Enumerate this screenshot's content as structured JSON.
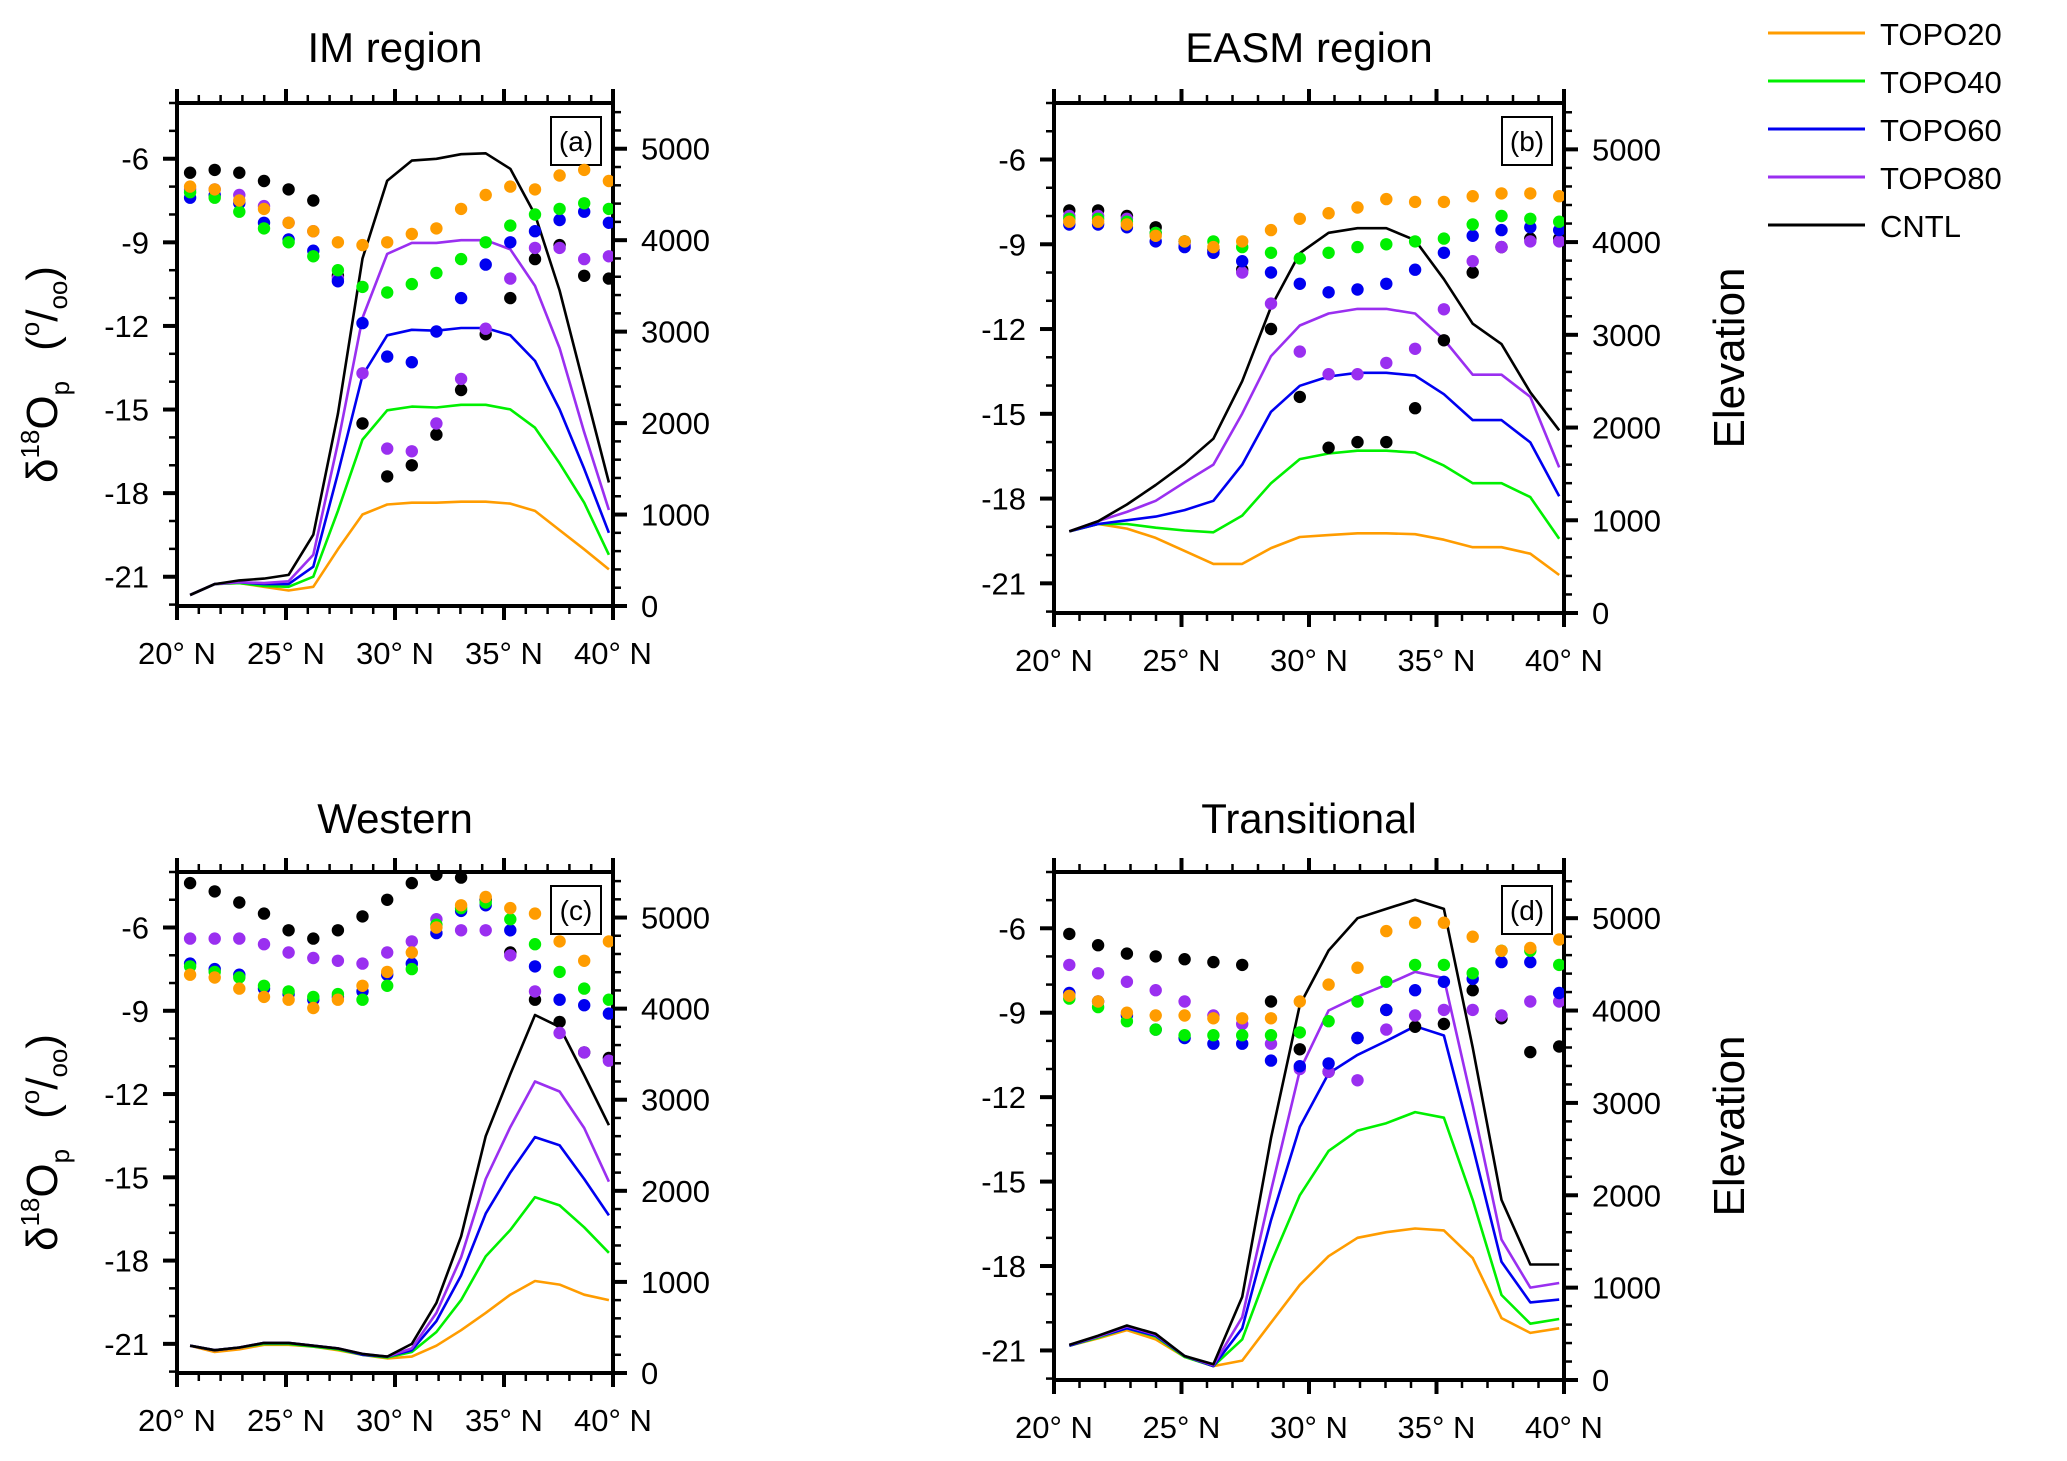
{
  "chart_data": {
    "type": "line",
    "figure_legend": {
      "placement": "top-right",
      "entries": [
        {
          "name": "TOPO20",
          "color": "#ff9c00"
        },
        {
          "name": "TOPO40",
          "color": "#00f000"
        },
        {
          "name": "TOPO60",
          "color": "#0000f0"
        },
        {
          "name": "TOPO80",
          "color": "#9a2ff0"
        },
        {
          "name": "CNTL",
          "color": "#000000"
        }
      ]
    },
    "shared": {
      "x": [
        20.6,
        21.73,
        22.86,
        23.99,
        25.12,
        26.25,
        27.38,
        28.51,
        29.64,
        30.77,
        31.9,
        33.03,
        34.16,
        35.29,
        36.42,
        37.55,
        38.68,
        39.81
      ],
      "xlim": [
        20,
        40
      ],
      "xticks": [
        20,
        25,
        30,
        35,
        40
      ],
      "xtick_labels": [
        "20° N",
        "25° N",
        "30° N",
        "35° N",
        "40° N"
      ],
      "ylabel_left": {
        "main": "δ",
        "sup": "18",
        "base": "O",
        "sub": "p",
        "unit": "(°/oo)"
      },
      "ylabel_left_parts": [
        "δ",
        "18",
        "O",
        "p",
        "(",
        "o",
        "/",
        "oo",
        ")"
      ],
      "ylim_left": [
        -22.05,
        -4
      ],
      "yticks_left": [
        -21,
        -18,
        -15,
        -12,
        -9,
        -6
      ],
      "ylabel_right": "Elevation",
      "ylim_right": [
        0,
        5500
      ],
      "yticks_right": [
        0,
        1000,
        2000,
        3000,
        4000,
        5000
      ],
      "series_order": [
        "TOPO20",
        "TOPO40",
        "TOPO60",
        "TOPO80",
        "CNTL"
      ],
      "line_meaning": "Elevation (right axis)",
      "dot_meaning": "δ18Op (left axis)"
    },
    "panels": [
      {
        "id": "a",
        "title": "IM region",
        "tag": "(a)",
        "show_left_label": true,
        "show_right_label": false,
        "dots": {
          "CNTL": [
            -6.5,
            -6.4,
            -6.5,
            -6.8,
            -7.1,
            -7.5,
            -10.2,
            -15.5,
            -17.4,
            -17.0,
            -15.9,
            -14.3,
            -12.3,
            -11.0,
            -9.6,
            -9.1,
            -10.2,
            -10.3
          ],
          "TOPO20": [
            -7.0,
            -7.1,
            -7.5,
            -7.8,
            -8.3,
            -8.6,
            -9.0,
            -9.1,
            -9.0,
            -8.7,
            -8.5,
            -7.8,
            -7.3,
            -7.0,
            -7.1,
            -6.6,
            -6.4,
            -6.8
          ],
          "TOPO40": [
            -7.2,
            -7.4,
            -7.9,
            -8.5,
            -9.0,
            -9.5,
            -10.0,
            -10.6,
            -10.8,
            -10.5,
            -10.1,
            -9.6,
            -9.0,
            -8.4,
            -8.0,
            -7.8,
            -7.6,
            -7.8
          ],
          "TOPO60": [
            -7.4,
            -7.3,
            -7.6,
            -8.3,
            -8.9,
            -9.3,
            -10.4,
            -11.9,
            -13.1,
            -13.3,
            -12.2,
            -11.0,
            -9.8,
            -9.0,
            -8.6,
            -8.2,
            -7.9,
            -8.3
          ],
          "TOPO80": [
            -7.1,
            -7.1,
            -7.3,
            -7.7,
            -8.3,
            -8.6,
            -10.3,
            -13.7,
            -16.4,
            -16.5,
            -15.5,
            -13.9,
            -12.1,
            -10.3,
            -9.2,
            -9.2,
            -9.6,
            -9.5
          ]
        },
        "elevation": {
          "CNTL": [
            120,
            240,
            280,
            300,
            340,
            780,
            2100,
            3800,
            4650,
            4870,
            4890,
            4940,
            4950,
            4780,
            4280,
            3450,
            2400,
            1350
          ],
          "TOPO80": [
            120,
            240,
            260,
            250,
            270,
            560,
            1780,
            3150,
            3850,
            3970,
            3970,
            4000,
            4000,
            3900,
            3500,
            2820,
            1900,
            1050
          ],
          "TOPO60": [
            120,
            240,
            260,
            240,
            240,
            430,
            1450,
            2520,
            2960,
            3020,
            3010,
            3040,
            3040,
            2960,
            2680,
            2150,
            1500,
            800
          ],
          "TOPO40": [
            120,
            240,
            250,
            220,
            210,
            320,
            1040,
            1820,
            2140,
            2180,
            2170,
            2200,
            2200,
            2150,
            1950,
            1560,
            1130,
            560
          ],
          "TOPO20": [
            120,
            240,
            250,
            210,
            170,
            210,
            620,
            1000,
            1110,
            1130,
            1130,
            1140,
            1140,
            1120,
            1040,
            830,
            620,
            400
          ]
        }
      },
      {
        "id": "b",
        "title": "EASM region",
        "tag": "(b)",
        "show_left_label": false,
        "show_right_label": true,
        "dots": {
          "CNTL": [
            -7.8,
            -7.8,
            -8.0,
            -8.4,
            -8.9,
            -9.2,
            -9.9,
            -12.0,
            -14.4,
            -16.2,
            -16.0,
            -16.0,
            -14.8,
            -12.4,
            -10.0,
            -9.1,
            -8.8,
            -8.8
          ],
          "TOPO20": [
            -8.2,
            -8.2,
            -8.3,
            -8.7,
            -8.9,
            -9.1,
            -8.9,
            -8.5,
            -8.1,
            -7.9,
            -7.7,
            -7.4,
            -7.5,
            -7.5,
            -7.3,
            -7.2,
            -7.2,
            -7.3
          ],
          "TOPO40": [
            -8.1,
            -8.1,
            -8.2,
            -8.6,
            -8.9,
            -8.9,
            -9.1,
            -9.3,
            -9.5,
            -9.3,
            -9.1,
            -9.0,
            -8.9,
            -8.8,
            -8.3,
            -8.0,
            -8.1,
            -8.2
          ],
          "TOPO60": [
            -8.3,
            -8.3,
            -8.4,
            -8.9,
            -9.1,
            -9.3,
            -9.6,
            -10.0,
            -10.4,
            -10.7,
            -10.6,
            -10.4,
            -9.9,
            -9.3,
            -8.7,
            -8.5,
            -8.4,
            -8.5
          ],
          "TOPO80": [
            -8.0,
            -8.0,
            -8.1,
            -8.6,
            -9.0,
            -9.3,
            -10.0,
            -11.1,
            -12.8,
            -13.6,
            -13.6,
            -13.2,
            -12.7,
            -11.3,
            -9.6,
            -9.1,
            -8.9,
            -8.9
          ]
        },
        "elevation": {
          "CNTL": [
            880,
            990,
            1170,
            1380,
            1610,
            1880,
            2500,
            3300,
            3880,
            4100,
            4150,
            4150,
            4020,
            3600,
            3120,
            2900,
            2380,
            1970
          ],
          "TOPO80": [
            880,
            990,
            1090,
            1210,
            1410,
            1600,
            2150,
            2770,
            3100,
            3230,
            3280,
            3280,
            3230,
            2950,
            2570,
            2570,
            2330,
            1570
          ],
          "TOPO60": [
            880,
            960,
            1000,
            1040,
            1110,
            1210,
            1600,
            2170,
            2450,
            2550,
            2590,
            2590,
            2560,
            2360,
            2080,
            2080,
            1840,
            1260
          ],
          "TOPO40": [
            880,
            960,
            960,
            920,
            890,
            870,
            1050,
            1400,
            1660,
            1720,
            1750,
            1750,
            1730,
            1590,
            1400,
            1400,
            1250,
            800
          ],
          "TOPO20": [
            880,
            960,
            910,
            810,
            670,
            530,
            530,
            700,
            820,
            840,
            860,
            860,
            850,
            790,
            710,
            710,
            640,
            410
          ]
        }
      },
      {
        "id": "c",
        "title": "Western",
        "tag": "(c)",
        "show_left_label": true,
        "show_right_label": false,
        "dots": {
          "CNTL": [
            -4.4,
            -4.7,
            -5.1,
            -5.5,
            -6.1,
            -6.4,
            -6.1,
            -5.6,
            -5.0,
            -4.4,
            -4.1,
            -4.2,
            -5.0,
            -6.9,
            -8.6,
            -9.4,
            -10.5,
            -10.7
          ],
          "TOPO20": [
            -7.7,
            -7.8,
            -8.2,
            -8.5,
            -8.6,
            -8.9,
            -8.6,
            -8.1,
            -7.6,
            -6.9,
            -6.0,
            -5.2,
            -4.9,
            -5.3,
            -5.5,
            -6.5,
            -7.2,
            -6.5
          ],
          "TOPO40": [
            -7.4,
            -7.6,
            -7.8,
            -8.1,
            -8.3,
            -8.5,
            -8.4,
            -8.6,
            -8.1,
            -7.5,
            -5.9,
            -5.3,
            -5.1,
            -5.7,
            -6.6,
            -7.6,
            -8.2,
            -8.6
          ],
          "TOPO60": [
            -7.3,
            -7.5,
            -7.7,
            -8.2,
            -8.4,
            -8.6,
            -8.5,
            -8.3,
            -7.7,
            -7.3,
            -6.2,
            -5.4,
            -5.2,
            -6.1,
            -7.4,
            -8.6,
            -8.8,
            -9.1
          ],
          "TOPO80": [
            -6.4,
            -6.4,
            -6.4,
            -6.6,
            -6.9,
            -7.1,
            -7.2,
            -7.3,
            -6.9,
            -6.5,
            -5.7,
            -6.1,
            -6.1,
            -7.0,
            -8.3,
            -9.8,
            -10.5,
            -10.8
          ]
        },
        "elevation": {
          "CNTL": [
            300,
            250,
            280,
            330,
            330,
            300,
            270,
            210,
            180,
            320,
            770,
            1500,
            2600,
            3280,
            3930,
            3800,
            3270,
            2720
          ],
          "TOPO80": [
            300,
            250,
            280,
            330,
            330,
            300,
            270,
            210,
            180,
            270,
            660,
            1270,
            2130,
            2700,
            3200,
            3090,
            2690,
            2100
          ],
          "TOPO60": [
            300,
            250,
            280,
            330,
            330,
            300,
            270,
            200,
            180,
            250,
            570,
            1070,
            1750,
            2200,
            2590,
            2500,
            2130,
            1730
          ],
          "TOPO40": [
            300,
            250,
            280,
            320,
            320,
            290,
            260,
            200,
            170,
            230,
            450,
            800,
            1280,
            1570,
            1930,
            1840,
            1600,
            1320
          ],
          "TOPO20": [
            300,
            230,
            260,
            310,
            310,
            290,
            250,
            200,
            160,
            180,
            300,
            470,
            660,
            860,
            1010,
            970,
            860,
            800
          ]
        }
      },
      {
        "id": "d",
        "title": "Transitional",
        "tag": "(d)",
        "show_left_label": false,
        "show_right_label": true,
        "dots": {
          "CNTL": [
            -6.2,
            -6.6,
            -6.9,
            -7.0,
            -7.1,
            -7.2,
            -7.3,
            -8.6,
            -10.3,
            -11.1,
            -9.9,
            -8.9,
            -9.5,
            -9.4,
            -8.2,
            -9.2,
            -10.4,
            -10.2
          ],
          "TOPO20": [
            -8.4,
            -8.6,
            -9.0,
            -9.1,
            -9.1,
            -9.2,
            -9.2,
            -9.2,
            -8.6,
            -8.0,
            -7.4,
            -6.1,
            -5.8,
            -5.8,
            -6.3,
            -6.8,
            -6.7,
            -6.4
          ],
          "TOPO40": [
            -8.5,
            -8.8,
            -9.3,
            -9.6,
            -9.8,
            -9.8,
            -9.8,
            -9.8,
            -9.7,
            -9.3,
            -8.6,
            -7.9,
            -7.3,
            -7.3,
            -7.6,
            -6.8,
            -6.8,
            -7.3
          ],
          "TOPO60": [
            -8.3,
            -8.6,
            -9.1,
            -9.6,
            -9.9,
            -10.1,
            -10.1,
            -10.7,
            -10.9,
            -10.8,
            -9.9,
            -8.9,
            -8.2,
            -7.9,
            -7.8,
            -7.2,
            -7.2,
            -8.3
          ],
          "TOPO80": [
            -7.3,
            -7.6,
            -7.9,
            -8.2,
            -8.6,
            -9.1,
            -9.4,
            -10.1,
            -11.0,
            -11.1,
            -11.4,
            -9.6,
            -9.1,
            -8.9,
            -8.9,
            -9.1,
            -8.6,
            -8.6
          ]
        },
        "elevation": {
          "CNTL": [
            380,
            480,
            590,
            500,
            260,
            170,
            900,
            2620,
            4060,
            4650,
            5000,
            5100,
            5200,
            5100,
            3600,
            1950,
            1250,
            1250
          ],
          "TOPO80": [
            380,
            470,
            580,
            490,
            260,
            160,
            680,
            2050,
            3350,
            4000,
            4150,
            4280,
            4420,
            4350,
            2980,
            1520,
            1000,
            1050
          ],
          "TOPO60": [
            370,
            470,
            560,
            480,
            260,
            150,
            560,
            1730,
            2740,
            3320,
            3520,
            3670,
            3830,
            3730,
            2530,
            1280,
            840,
            870
          ],
          "TOPO40": [
            370,
            460,
            560,
            470,
            250,
            150,
            440,
            1270,
            2000,
            2480,
            2700,
            2780,
            2900,
            2840,
            1950,
            920,
            610,
            660
          ],
          "TOPO20": [
            370,
            450,
            540,
            440,
            250,
            150,
            210,
            620,
            1030,
            1340,
            1540,
            1600,
            1640,
            1620,
            1320,
            670,
            510,
            560
          ]
        }
      }
    ]
  }
}
